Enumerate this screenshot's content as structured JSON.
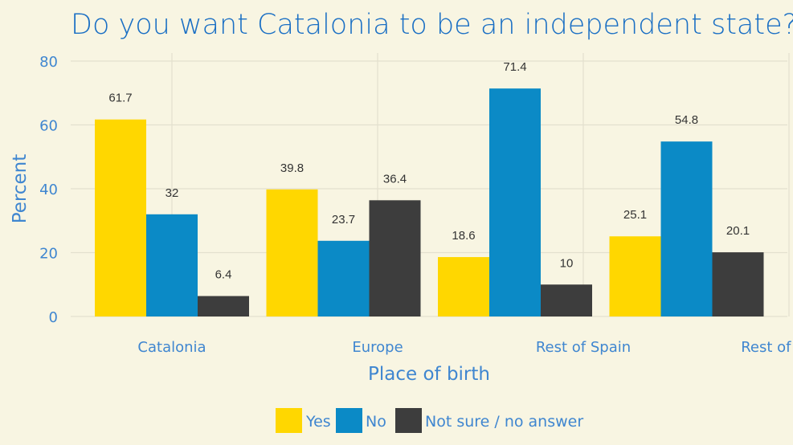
{
  "chart_data": {
    "type": "bar",
    "title": "Do you want Catalonia to be an independent state?",
    "xlabel": "Place of birth",
    "ylabel": "Percent",
    "categories": [
      "Catalonia",
      "Europe",
      "Rest of Spain",
      "Rest of World"
    ],
    "series": [
      {
        "name": "Yes",
        "values": [
          61.7,
          39.8,
          18.6,
          25.1
        ],
        "color": "#ffd700"
      },
      {
        "name": "No",
        "values": [
          32,
          23.7,
          71.4,
          54.8
        ],
        "color": "#0b8ac6"
      },
      {
        "name": "Not sure / no answer",
        "values": [
          6.4,
          36.4,
          10,
          20.1
        ],
        "color": "#3d3d3d"
      }
    ],
    "ylim": [
      0,
      80
    ],
    "yticks": [
      0,
      20,
      40,
      60,
      80
    ],
    "grid": true,
    "legend_position": "bottom"
  }
}
